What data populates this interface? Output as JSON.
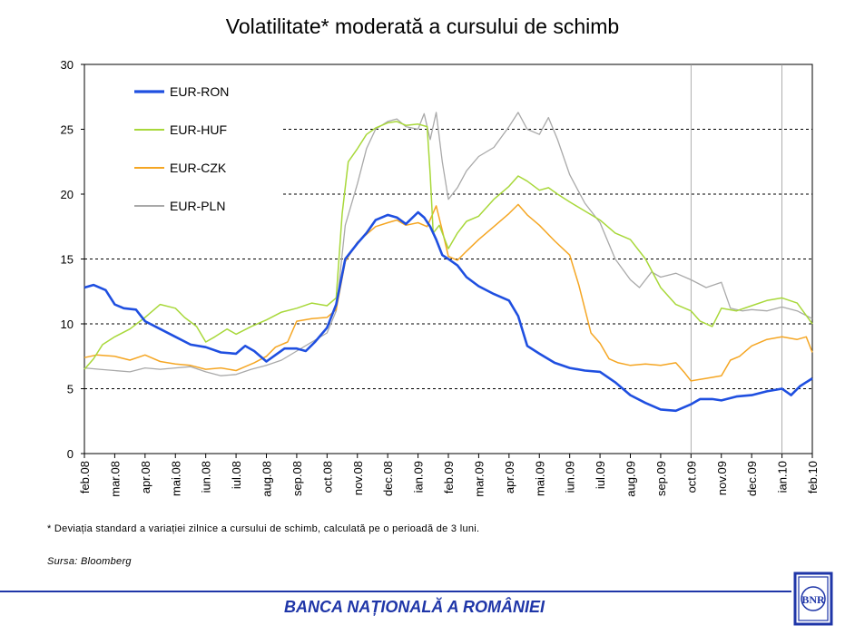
{
  "title": "Volatilitate* moderată a cursului de schimb",
  "footnote": "* Deviația standard a variației zilnice a cursului de schimb, calculată pe o perioadă de 3 luni.",
  "source": "Sursa: Bloomberg",
  "bank_name": "BANCA NAȚIONALĂ A ROMÂNIEI",
  "logo_text": "BNR",
  "colors": {
    "footer": "#1f36a8"
  },
  "chart_data": {
    "type": "line",
    "title": "Volatilitate* moderată a cursului de schimb",
    "xlabel": "",
    "ylabel": "",
    "ylim": [
      0,
      30
    ],
    "yticks": [
      0,
      5,
      10,
      15,
      20,
      25,
      30
    ],
    "dashed_gridlines": [
      5,
      10,
      15,
      20,
      25
    ],
    "legend_position": "top-left",
    "categories": [
      "feb.08",
      "mar.08",
      "apr.08",
      "mai.08",
      "iun.08",
      "iul.08",
      "aug.08",
      "sep.08",
      "oct.08",
      "nov.08",
      "dec.08",
      "ian.09",
      "feb.09",
      "mar.09",
      "apr.09",
      "mai.09",
      "iun.09",
      "iul.09",
      "aug.09",
      "sep.09",
      "oct.09",
      "nov.09",
      "dec.09",
      "ian.10",
      "feb.10"
    ],
    "vlines": [
      "oct.09",
      "ian.10"
    ],
    "series": [
      {
        "name": "EUR-RON",
        "color": "#1f4fe0",
        "width": 2.6,
        "points": [
          [
            0,
            12.8
          ],
          [
            0.3,
            13
          ],
          [
            0.7,
            12.6
          ],
          [
            1,
            11.5
          ],
          [
            1.3,
            11.2
          ],
          [
            1.7,
            11.1
          ],
          [
            2,
            10.2
          ],
          [
            2.5,
            9.6
          ],
          [
            3,
            9.0
          ],
          [
            3.5,
            8.4
          ],
          [
            4,
            8.2
          ],
          [
            4.5,
            7.8
          ],
          [
            5,
            7.7
          ],
          [
            5.3,
            8.3
          ],
          [
            5.6,
            7.9
          ],
          [
            6,
            7.1
          ],
          [
            6.3,
            7.6
          ],
          [
            6.6,
            8.1
          ],
          [
            7,
            8.1
          ],
          [
            7.3,
            7.9
          ],
          [
            7.6,
            8.6
          ],
          [
            8,
            9.7
          ],
          [
            8.3,
            11.5
          ],
          [
            8.6,
            15.0
          ],
          [
            9,
            16.2
          ],
          [
            9.3,
            17.0
          ],
          [
            9.6,
            18.0
          ],
          [
            10,
            18.4
          ],
          [
            10.3,
            18.2
          ],
          [
            10.6,
            17.7
          ],
          [
            11,
            18.6
          ],
          [
            11.2,
            18.2
          ],
          [
            11.4,
            17.5
          ],
          [
            11.6,
            16.5
          ],
          [
            11.8,
            15.3
          ],
          [
            12,
            15.0
          ],
          [
            12.3,
            14.5
          ],
          [
            12.6,
            13.6
          ],
          [
            13,
            12.9
          ],
          [
            13.5,
            12.3
          ],
          [
            14,
            11.8
          ],
          [
            14.3,
            10.6
          ],
          [
            14.6,
            8.3
          ],
          [
            15,
            7.7
          ],
          [
            15.5,
            7.0
          ],
          [
            16,
            6.6
          ],
          [
            16.5,
            6.4
          ],
          [
            17,
            6.3
          ],
          [
            17.5,
            5.5
          ],
          [
            18,
            4.5
          ],
          [
            18.5,
            3.9
          ],
          [
            19,
            3.4
          ],
          [
            19.5,
            3.3
          ],
          [
            20,
            3.8
          ],
          [
            20.3,
            4.2
          ],
          [
            20.7,
            4.2
          ],
          [
            21,
            4.1
          ],
          [
            21.5,
            4.4
          ],
          [
            22,
            4.5
          ],
          [
            22.5,
            4.8
          ],
          [
            23,
            5.0
          ],
          [
            23.3,
            4.5
          ],
          [
            23.6,
            5.2
          ],
          [
            24,
            5.8
          ]
        ]
      },
      {
        "name": "EUR-HUF",
        "color": "#a8d83a",
        "width": 1.5,
        "points": [
          [
            0,
            6.5
          ],
          [
            0.3,
            7.3
          ],
          [
            0.6,
            8.4
          ],
          [
            1,
            9.0
          ],
          [
            1.5,
            9.6
          ],
          [
            2,
            10.5
          ],
          [
            2.5,
            11.5
          ],
          [
            3,
            11.2
          ],
          [
            3.3,
            10.5
          ],
          [
            3.7,
            9.8
          ],
          [
            4,
            8.6
          ],
          [
            4.3,
            9.0
          ],
          [
            4.7,
            9.6
          ],
          [
            5,
            9.2
          ],
          [
            5.5,
            9.8
          ],
          [
            6,
            10.3
          ],
          [
            6.5,
            10.9
          ],
          [
            7,
            11.2
          ],
          [
            7.5,
            11.6
          ],
          [
            8,
            11.4
          ],
          [
            8.3,
            12.0
          ],
          [
            8.5,
            18.5
          ],
          [
            8.7,
            22.5
          ],
          [
            9,
            23.5
          ],
          [
            9.3,
            24.6
          ],
          [
            9.6,
            25.1
          ],
          [
            10,
            25.5
          ],
          [
            10.3,
            25.6
          ],
          [
            10.6,
            25.3
          ],
          [
            11,
            25.4
          ],
          [
            11.3,
            25.2
          ],
          [
            11.4,
            21.5
          ],
          [
            11.5,
            17.0
          ],
          [
            11.7,
            17.6
          ],
          [
            12,
            15.8
          ],
          [
            12.3,
            17.0
          ],
          [
            12.6,
            17.9
          ],
          [
            13,
            18.3
          ],
          [
            13.5,
            19.6
          ],
          [
            14,
            20.6
          ],
          [
            14.3,
            21.4
          ],
          [
            14.6,
            21.0
          ],
          [
            15,
            20.3
          ],
          [
            15.3,
            20.5
          ],
          [
            15.6,
            20.0
          ],
          [
            16,
            19.4
          ],
          [
            16.5,
            18.7
          ],
          [
            17,
            18.0
          ],
          [
            17.5,
            17.0
          ],
          [
            18,
            16.5
          ],
          [
            18.5,
            15.0
          ],
          [
            19,
            12.8
          ],
          [
            19.5,
            11.5
          ],
          [
            20,
            11.0
          ],
          [
            20.3,
            10.2
          ],
          [
            20.7,
            9.8
          ],
          [
            21,
            11.2
          ],
          [
            21.5,
            11.0
          ],
          [
            22,
            11.4
          ],
          [
            22.5,
            11.8
          ],
          [
            23,
            12.0
          ],
          [
            23.5,
            11.6
          ],
          [
            24,
            10.0
          ]
        ]
      },
      {
        "name": "EUR-CZK",
        "color": "#f5a623",
        "width": 1.5,
        "points": [
          [
            0,
            7.4
          ],
          [
            0.4,
            7.6
          ],
          [
            1,
            7.5
          ],
          [
            1.5,
            7.2
          ],
          [
            2,
            7.6
          ],
          [
            2.5,
            7.1
          ],
          [
            3,
            6.9
          ],
          [
            3.5,
            6.8
          ],
          [
            4,
            6.5
          ],
          [
            4.5,
            6.6
          ],
          [
            5,
            6.4
          ],
          [
            5.3,
            6.7
          ],
          [
            5.6,
            7.0
          ],
          [
            6,
            7.5
          ],
          [
            6.3,
            8.2
          ],
          [
            6.7,
            8.6
          ],
          [
            7,
            10.2
          ],
          [
            7.5,
            10.4
          ],
          [
            8,
            10.5
          ],
          [
            8.3,
            11.1
          ],
          [
            8.6,
            14.8
          ],
          [
            9,
            16.3
          ],
          [
            9.3,
            16.9
          ],
          [
            9.6,
            17.5
          ],
          [
            10,
            17.8
          ],
          [
            10.3,
            18.0
          ],
          [
            10.6,
            17.6
          ],
          [
            11,
            17.8
          ],
          [
            11.3,
            17.5
          ],
          [
            11.6,
            19.1
          ],
          [
            11.8,
            17.2
          ],
          [
            12,
            15.2
          ],
          [
            12.3,
            14.9
          ],
          [
            12.6,
            15.6
          ],
          [
            13,
            16.5
          ],
          [
            13.5,
            17.5
          ],
          [
            14,
            18.5
          ],
          [
            14.3,
            19.2
          ],
          [
            14.6,
            18.4
          ],
          [
            15,
            17.6
          ],
          [
            15.5,
            16.4
          ],
          [
            16,
            15.3
          ],
          [
            16.3,
            13.0
          ],
          [
            16.7,
            9.3
          ],
          [
            17,
            8.5
          ],
          [
            17.3,
            7.3
          ],
          [
            17.6,
            7.0
          ],
          [
            18,
            6.8
          ],
          [
            18.5,
            6.9
          ],
          [
            19,
            6.8
          ],
          [
            19.5,
            7.0
          ],
          [
            19.8,
            6.2
          ],
          [
            20,
            5.6
          ],
          [
            20.5,
            5.8
          ],
          [
            21,
            6.0
          ],
          [
            21.3,
            7.2
          ],
          [
            21.6,
            7.5
          ],
          [
            22,
            8.3
          ],
          [
            22.5,
            8.8
          ],
          [
            23,
            9.0
          ],
          [
            23.5,
            8.8
          ],
          [
            23.8,
            9.0
          ],
          [
            24,
            7.8
          ]
        ]
      },
      {
        "name": "EUR-PLN",
        "color": "#a9a9a9",
        "width": 1.3,
        "points": [
          [
            0,
            6.6
          ],
          [
            0.5,
            6.5
          ],
          [
            1,
            6.4
          ],
          [
            1.5,
            6.3
          ],
          [
            2,
            6.6
          ],
          [
            2.5,
            6.5
          ],
          [
            3,
            6.6
          ],
          [
            3.5,
            6.7
          ],
          [
            4,
            6.3
          ],
          [
            4.5,
            6.0
          ],
          [
            5,
            6.1
          ],
          [
            5.5,
            6.5
          ],
          [
            6,
            6.8
          ],
          [
            6.5,
            7.2
          ],
          [
            7,
            7.9
          ],
          [
            7.5,
            8.6
          ],
          [
            8,
            9.3
          ],
          [
            8.3,
            11.0
          ],
          [
            8.6,
            17.6
          ],
          [
            9,
            20.8
          ],
          [
            9.3,
            23.5
          ],
          [
            9.6,
            25.0
          ],
          [
            10,
            25.6
          ],
          [
            10.3,
            25.8
          ],
          [
            10.6,
            25.2
          ],
          [
            11,
            25.0
          ],
          [
            11.2,
            26.2
          ],
          [
            11.4,
            24.2
          ],
          [
            11.6,
            26.3
          ],
          [
            11.8,
            22.5
          ],
          [
            12,
            19.6
          ],
          [
            12.3,
            20.5
          ],
          [
            12.6,
            21.8
          ],
          [
            13,
            22.9
          ],
          [
            13.5,
            23.6
          ],
          [
            14,
            25.2
          ],
          [
            14.3,
            26.3
          ],
          [
            14.6,
            25.0
          ],
          [
            15,
            24.6
          ],
          [
            15.3,
            25.9
          ],
          [
            15.6,
            24.2
          ],
          [
            16,
            21.5
          ],
          [
            16.5,
            19.3
          ],
          [
            17,
            17.8
          ],
          [
            17.5,
            15.0
          ],
          [
            18,
            13.4
          ],
          [
            18.3,
            12.8
          ],
          [
            18.7,
            14.0
          ],
          [
            19,
            13.6
          ],
          [
            19.5,
            13.9
          ],
          [
            20,
            13.4
          ],
          [
            20.5,
            12.8
          ],
          [
            21,
            13.2
          ],
          [
            21.3,
            11.2
          ],
          [
            21.7,
            11.0
          ],
          [
            22,
            11.1
          ],
          [
            22.5,
            11.0
          ],
          [
            23,
            11.3
          ],
          [
            23.5,
            11.0
          ],
          [
            24,
            10.4
          ]
        ]
      }
    ]
  }
}
